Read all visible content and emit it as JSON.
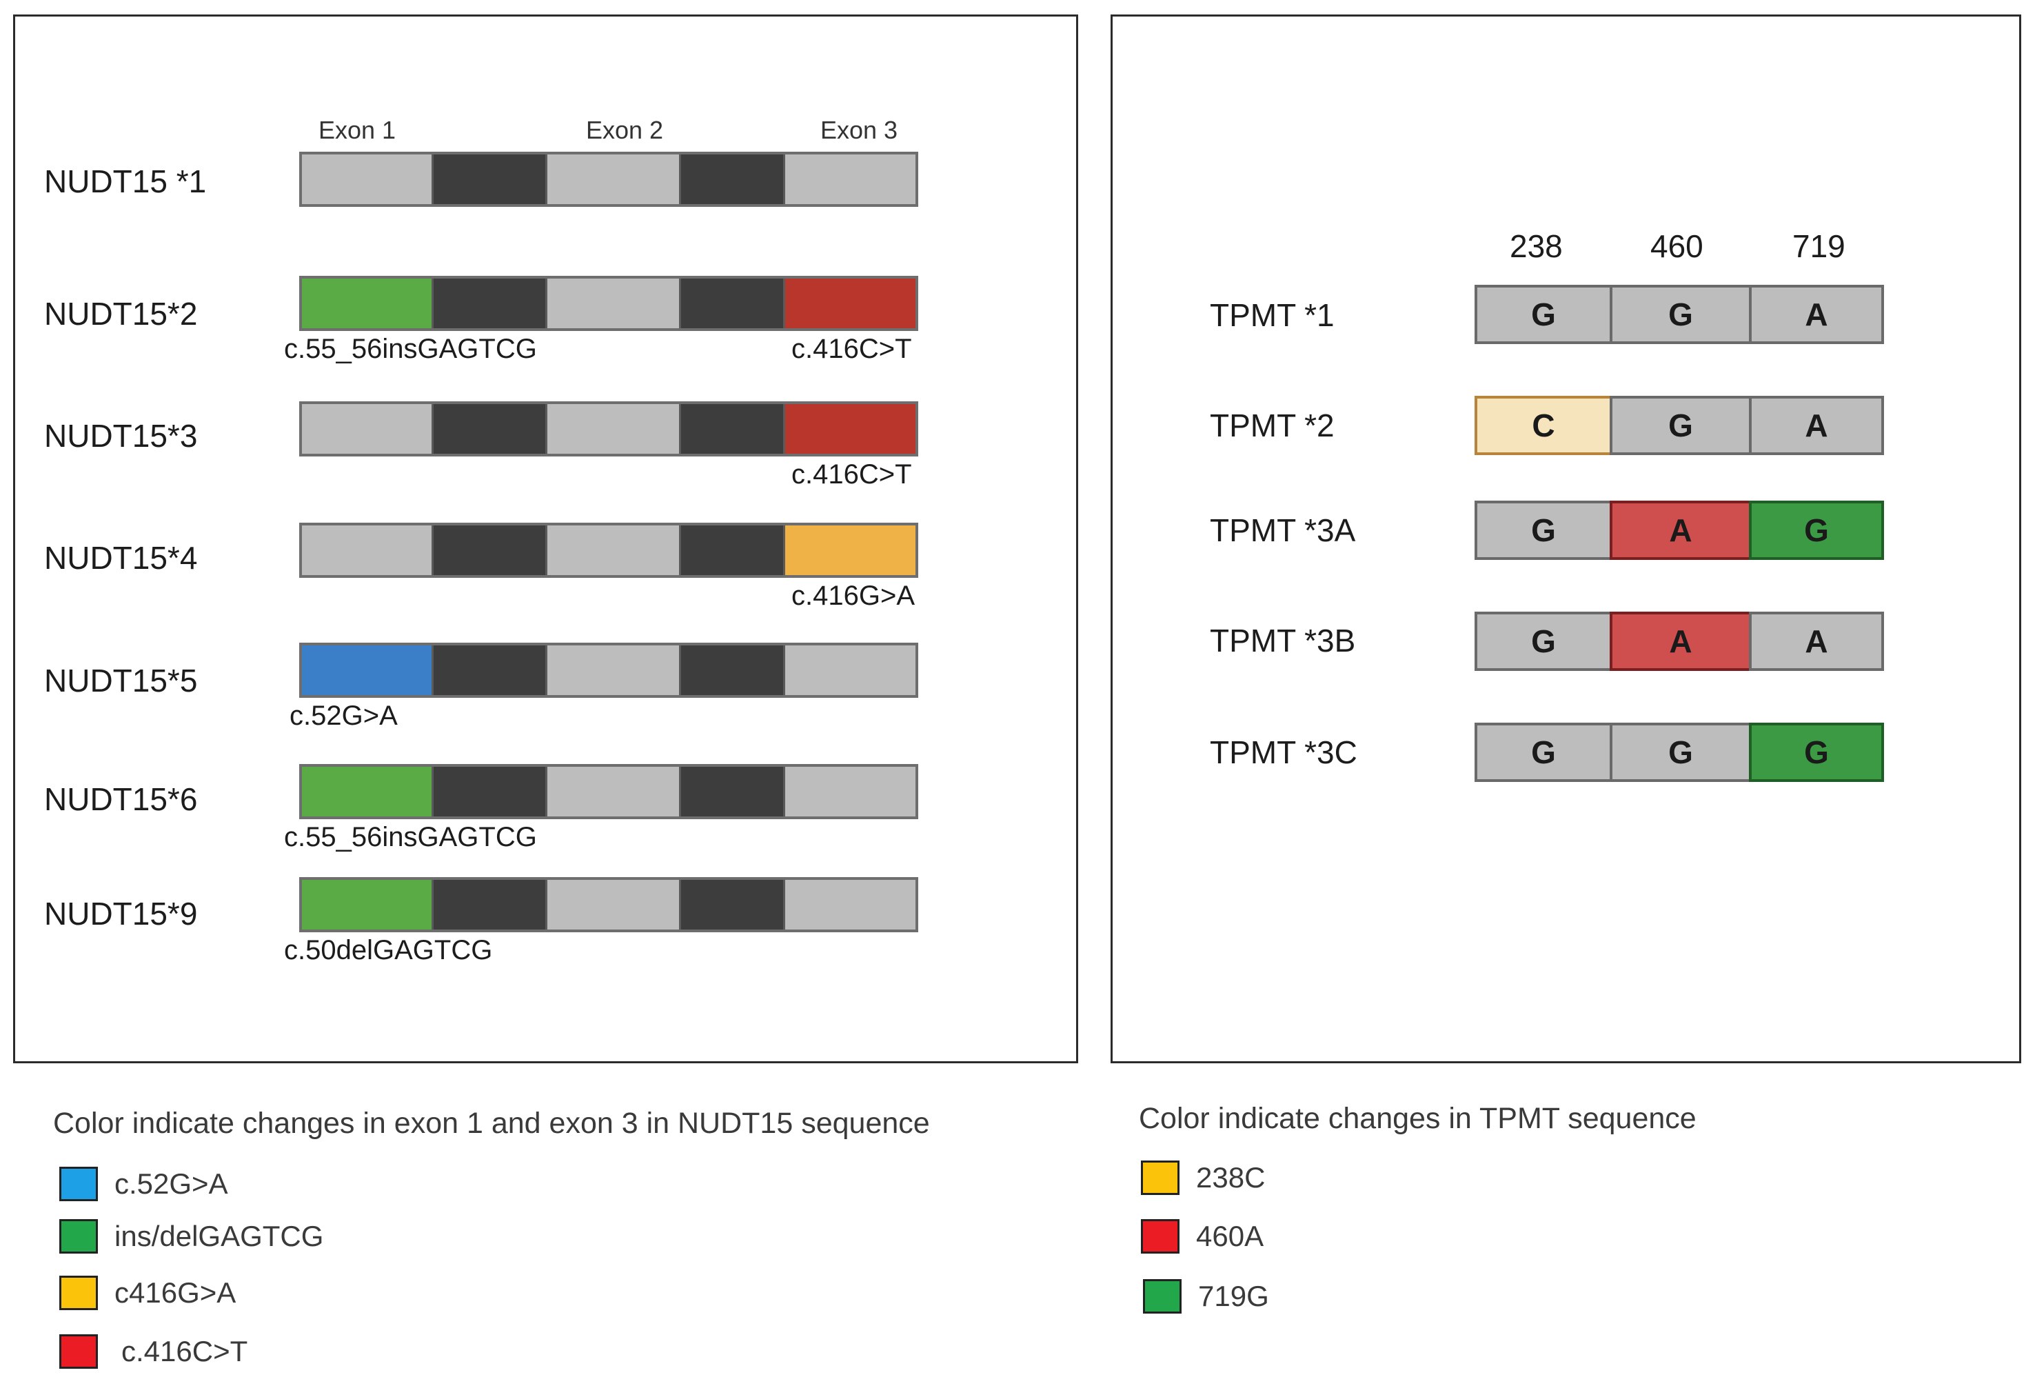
{
  "nudt15_panel": {
    "exon_headers": [
      "Exon 1",
      "Exon 2",
      "Exon 3"
    ],
    "colors": {
      "exon": "#bdbdbd",
      "intron": "#3d3d3d",
      "blue": "#3a7fc7",
      "green": "#5aaa46",
      "red": "#b8362c",
      "orange": "#efb246"
    },
    "alleles": [
      {
        "label": "NUDT15 *1",
        "exon1": "exon",
        "exon3": "exon",
        "left_note": "",
        "right_note": ""
      },
      {
        "label": "NUDT15*2",
        "exon1": "green",
        "exon3": "red",
        "left_note": "c.55_56insGAGTCG",
        "right_note": "c.416C>T"
      },
      {
        "label": "NUDT15*3",
        "exon1": "exon",
        "exon3": "red",
        "left_note": "",
        "right_note": "c.416C>T"
      },
      {
        "label": "NUDT15*4",
        "exon1": "exon",
        "exon3": "orange",
        "left_note": "",
        "right_note": "c.416G>A"
      },
      {
        "label": "NUDT15*5",
        "exon1": "blue",
        "exon3": "exon",
        "left_note": "c.52G>A",
        "right_note": ""
      },
      {
        "label": "NUDT15*6",
        "exon1": "green",
        "exon3": "exon",
        "left_note": "c.55_56insGAGTCG",
        "right_note": ""
      },
      {
        "label": "NUDT15*9",
        "exon1": "green",
        "exon3": "exon",
        "left_note": "c.50delGAGTCG",
        "right_note": ""
      }
    ]
  },
  "tpmt_panel": {
    "positions": [
      "238",
      "460",
      "719"
    ],
    "colors": {
      "ref": "#bdbdbd",
      "cream": "#f6e4bd",
      "red": "#cf4f4f",
      "green": "#3c9a44"
    },
    "alleles": [
      {
        "label": "TPMT *1",
        "bases": [
          "G",
          "G",
          "A"
        ],
        "fills": [
          "ref",
          "ref",
          "ref"
        ]
      },
      {
        "label": "TPMT *2",
        "bases": [
          "C",
          "G",
          "A"
        ],
        "fills": [
          "cream",
          "ref",
          "ref"
        ]
      },
      {
        "label": "TPMT *3A",
        "bases": [
          "G",
          "A",
          "G"
        ],
        "fills": [
          "ref",
          "red",
          "green"
        ]
      },
      {
        "label": "TPMT *3B",
        "bases": [
          "G",
          "A",
          "A"
        ],
        "fills": [
          "ref",
          "red",
          "ref"
        ]
      },
      {
        "label": "TPMT *3C",
        "bases": [
          "G",
          "G",
          "G"
        ],
        "fills": [
          "ref",
          "ref",
          "green"
        ]
      }
    ]
  },
  "nudt15_legend": {
    "title": "Color indicate changes in exon 1 and exon 3 in NUDT15 sequence",
    "items": [
      {
        "label": "c.52G>A",
        "color": "#1ea0e6"
      },
      {
        "label": "ins/delGAGTCG",
        "color": "#22a84a"
      },
      {
        "label": "c416G>A",
        "color": "#fbc30a"
      },
      {
        "label": "c.416C>T",
        "color": "#ec1c24"
      }
    ]
  },
  "tpmt_legend": {
    "title": "Color indicate changes in TPMT sequence",
    "items": [
      {
        "label": "238C",
        "color": "#fbc30a"
      },
      {
        "label": "460A",
        "color": "#ec1c24"
      },
      {
        "label": "719G",
        "color": "#22a84a"
      }
    ]
  }
}
